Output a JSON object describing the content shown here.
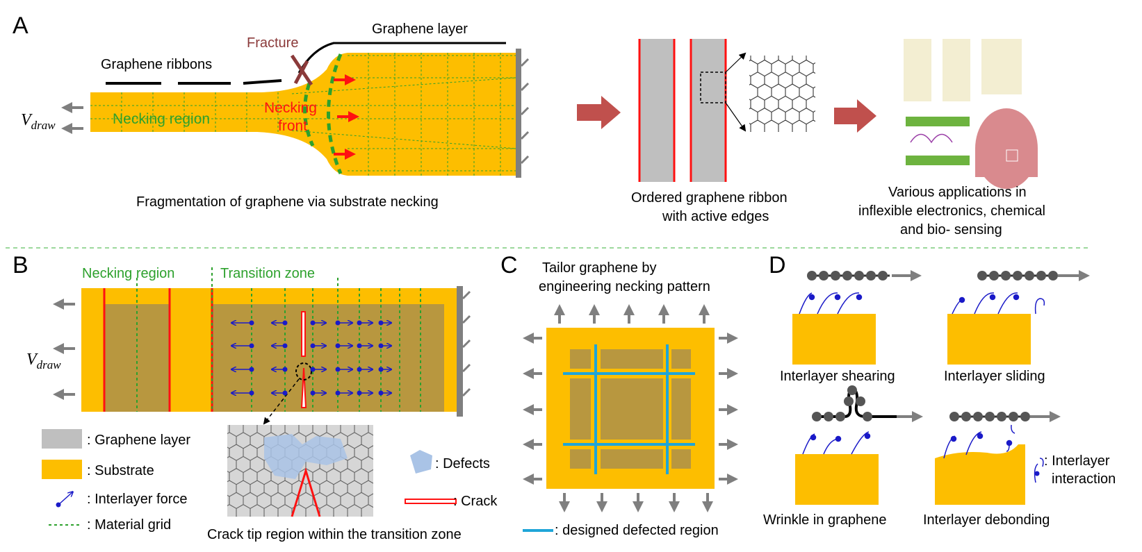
{
  "panels": {
    "a": "A",
    "b": "B",
    "c": "C",
    "d": "D"
  },
  "colors": {
    "substrate": "#FDBE00",
    "substrate_dark": "#B8973F",
    "graphene": "#BFBFBF",
    "grid_green": "#2DA12D",
    "red": "#FF1111",
    "arrow_gray": "#7F7F7F",
    "big_arrow": "#C0504D",
    "defect_blue": "#A9C3E6",
    "line_cyan": "#1FA5D8",
    "force_blue": "#1A1AC8"
  },
  "panel_a": {
    "fracture": "Fracture",
    "graphene_layer": "Graphene layer",
    "graphene_ribbons": "Graphene ribbons",
    "v_draw_main": "V",
    "v_draw_sub": "draw",
    "necking_region": "Necking region",
    "necking_front_1": "Necking",
    "necking_front_2": "front",
    "caption": "Fragmentation of graphene via substrate necking",
    "ribbon_caption_1": "Ordered graphene ribbon",
    "ribbon_caption_2": "with active edges",
    "apps_caption_1": "Various applications in",
    "apps_caption_2": "inflexible electronics, chemical",
    "apps_caption_3": "and bio- sensing"
  },
  "panel_b": {
    "necking_region": "Necking region",
    "transition_zone": "Transition zone",
    "v_draw_main": "V",
    "v_draw_sub": "draw",
    "legend_graphene": ": Graphene layer",
    "legend_substrate": ": Substrate",
    "legend_force": ": Interlayer force",
    "legend_grid": ": Material grid",
    "legend_defects": ": Defects",
    "legend_crack": ": Crack",
    "crack_caption": "Crack tip region within the transition zone"
  },
  "panel_c": {
    "title_1": "Tailor graphene by",
    "title_2": "engineering necking pattern",
    "legend": ": designed defected region"
  },
  "panel_d": {
    "shearing": "Interlayer shearing",
    "sliding": "Interlayer sliding",
    "wrinkle": "Wrinkle in graphene",
    "debonding": "Interlayer debonding",
    "interaction_1": ": Interlayer",
    "interaction_2": "interaction"
  }
}
